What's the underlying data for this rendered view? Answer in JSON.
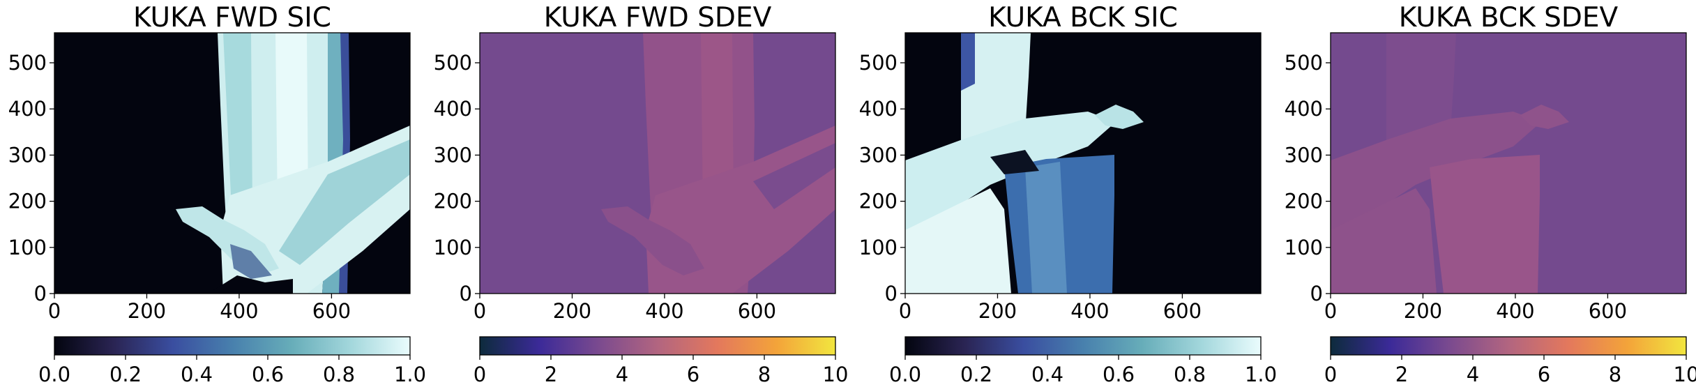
{
  "colors": {
    "sic_colormap": [
      "#03050f",
      "#2a2453",
      "#3a4ea0",
      "#4880ad",
      "#67adb9",
      "#a3d7dc",
      "#eafcfd"
    ],
    "sdev_colormap": [
      "#0d2b3c",
      "#3b2a98",
      "#7a4a8f",
      "#b26580",
      "#e3785d",
      "#f3a33a",
      "#f2e63f"
    ],
    "dark_ice": "#03050f",
    "ice_light": "#e3f6f6",
    "ice_mid": "#b6e2e4",
    "ice_blue": "#3b6fb0",
    "sdev_base": "#744a8e",
    "sdev_high": "#97548a",
    "sdev_low": "#6a4486"
  },
  "chart_data": [
    {
      "type": "heatmap",
      "title": "KUKA FWD SIC",
      "xlim": [
        0,
        770
      ],
      "ylim": [
        0,
        565
      ],
      "xticks": [
        0,
        200,
        400,
        600
      ],
      "yticks": [
        0,
        100,
        200,
        300,
        400,
        500
      ],
      "xtick_labels": [
        "0",
        "200",
        "400",
        "600"
      ],
      "ytick_labels": [
        "0",
        "100",
        "200",
        "300",
        "400",
        "500"
      ],
      "colorbar": {
        "range": [
          0,
          1
        ],
        "ticks": [
          0,
          0.2,
          0.4,
          0.6,
          0.8,
          1.0
        ],
        "tick_labels": [
          "0.0",
          "0.2",
          "0.4",
          "0.6",
          "0.8",
          "1.0"
        ],
        "cmap": "sic"
      }
    },
    {
      "type": "heatmap",
      "title": "KUKA FWD SDEV",
      "xlim": [
        0,
        770
      ],
      "ylim": [
        0,
        565
      ],
      "xticks": [
        0,
        200,
        400,
        600
      ],
      "yticks": [
        0,
        100,
        200,
        300,
        400,
        500
      ],
      "xtick_labels": [
        "0",
        "200",
        "400",
        "600"
      ],
      "ytick_labels": [
        "0",
        "100",
        "200",
        "300",
        "400",
        "500"
      ],
      "colorbar": {
        "range": [
          0,
          10
        ],
        "ticks": [
          0,
          2,
          4,
          6,
          8,
          10
        ],
        "tick_labels": [
          "0",
          "2",
          "4",
          "6",
          "8",
          "10"
        ],
        "cmap": "sdev"
      }
    },
    {
      "type": "heatmap",
      "title": "KUKA BCK SIC",
      "xlim": [
        0,
        770
      ],
      "ylim": [
        0,
        565
      ],
      "xticks": [
        0,
        200,
        400,
        600
      ],
      "yticks": [
        0,
        100,
        200,
        300,
        400,
        500
      ],
      "xtick_labels": [
        "0",
        "200",
        "400",
        "600"
      ],
      "ytick_labels": [
        "0",
        "100",
        "200",
        "300",
        "400",
        "500"
      ],
      "colorbar": {
        "range": [
          0,
          1
        ],
        "ticks": [
          0,
          0.2,
          0.4,
          0.6,
          0.8,
          1.0
        ],
        "tick_labels": [
          "0.0",
          "0.2",
          "0.4",
          "0.6",
          "0.8",
          "1.0"
        ],
        "cmap": "sic"
      }
    },
    {
      "type": "heatmap",
      "title": "KUKA BCK SDEV",
      "xlim": [
        0,
        770
      ],
      "ylim": [
        0,
        565
      ],
      "xticks": [
        0,
        200,
        400,
        600
      ],
      "yticks": [
        0,
        100,
        200,
        300,
        400,
        500
      ],
      "xtick_labels": [
        "0",
        "200",
        "400",
        "600"
      ],
      "ytick_labels": [
        "0",
        "100",
        "200",
        "300",
        "400",
        "500"
      ],
      "colorbar": {
        "range": [
          0,
          10
        ],
        "ticks": [
          0,
          2,
          4,
          6,
          8,
          10
        ],
        "tick_labels": [
          "0",
          "2",
          "4",
          "6",
          "8",
          "10"
        ],
        "cmap": "sdev"
      }
    }
  ]
}
